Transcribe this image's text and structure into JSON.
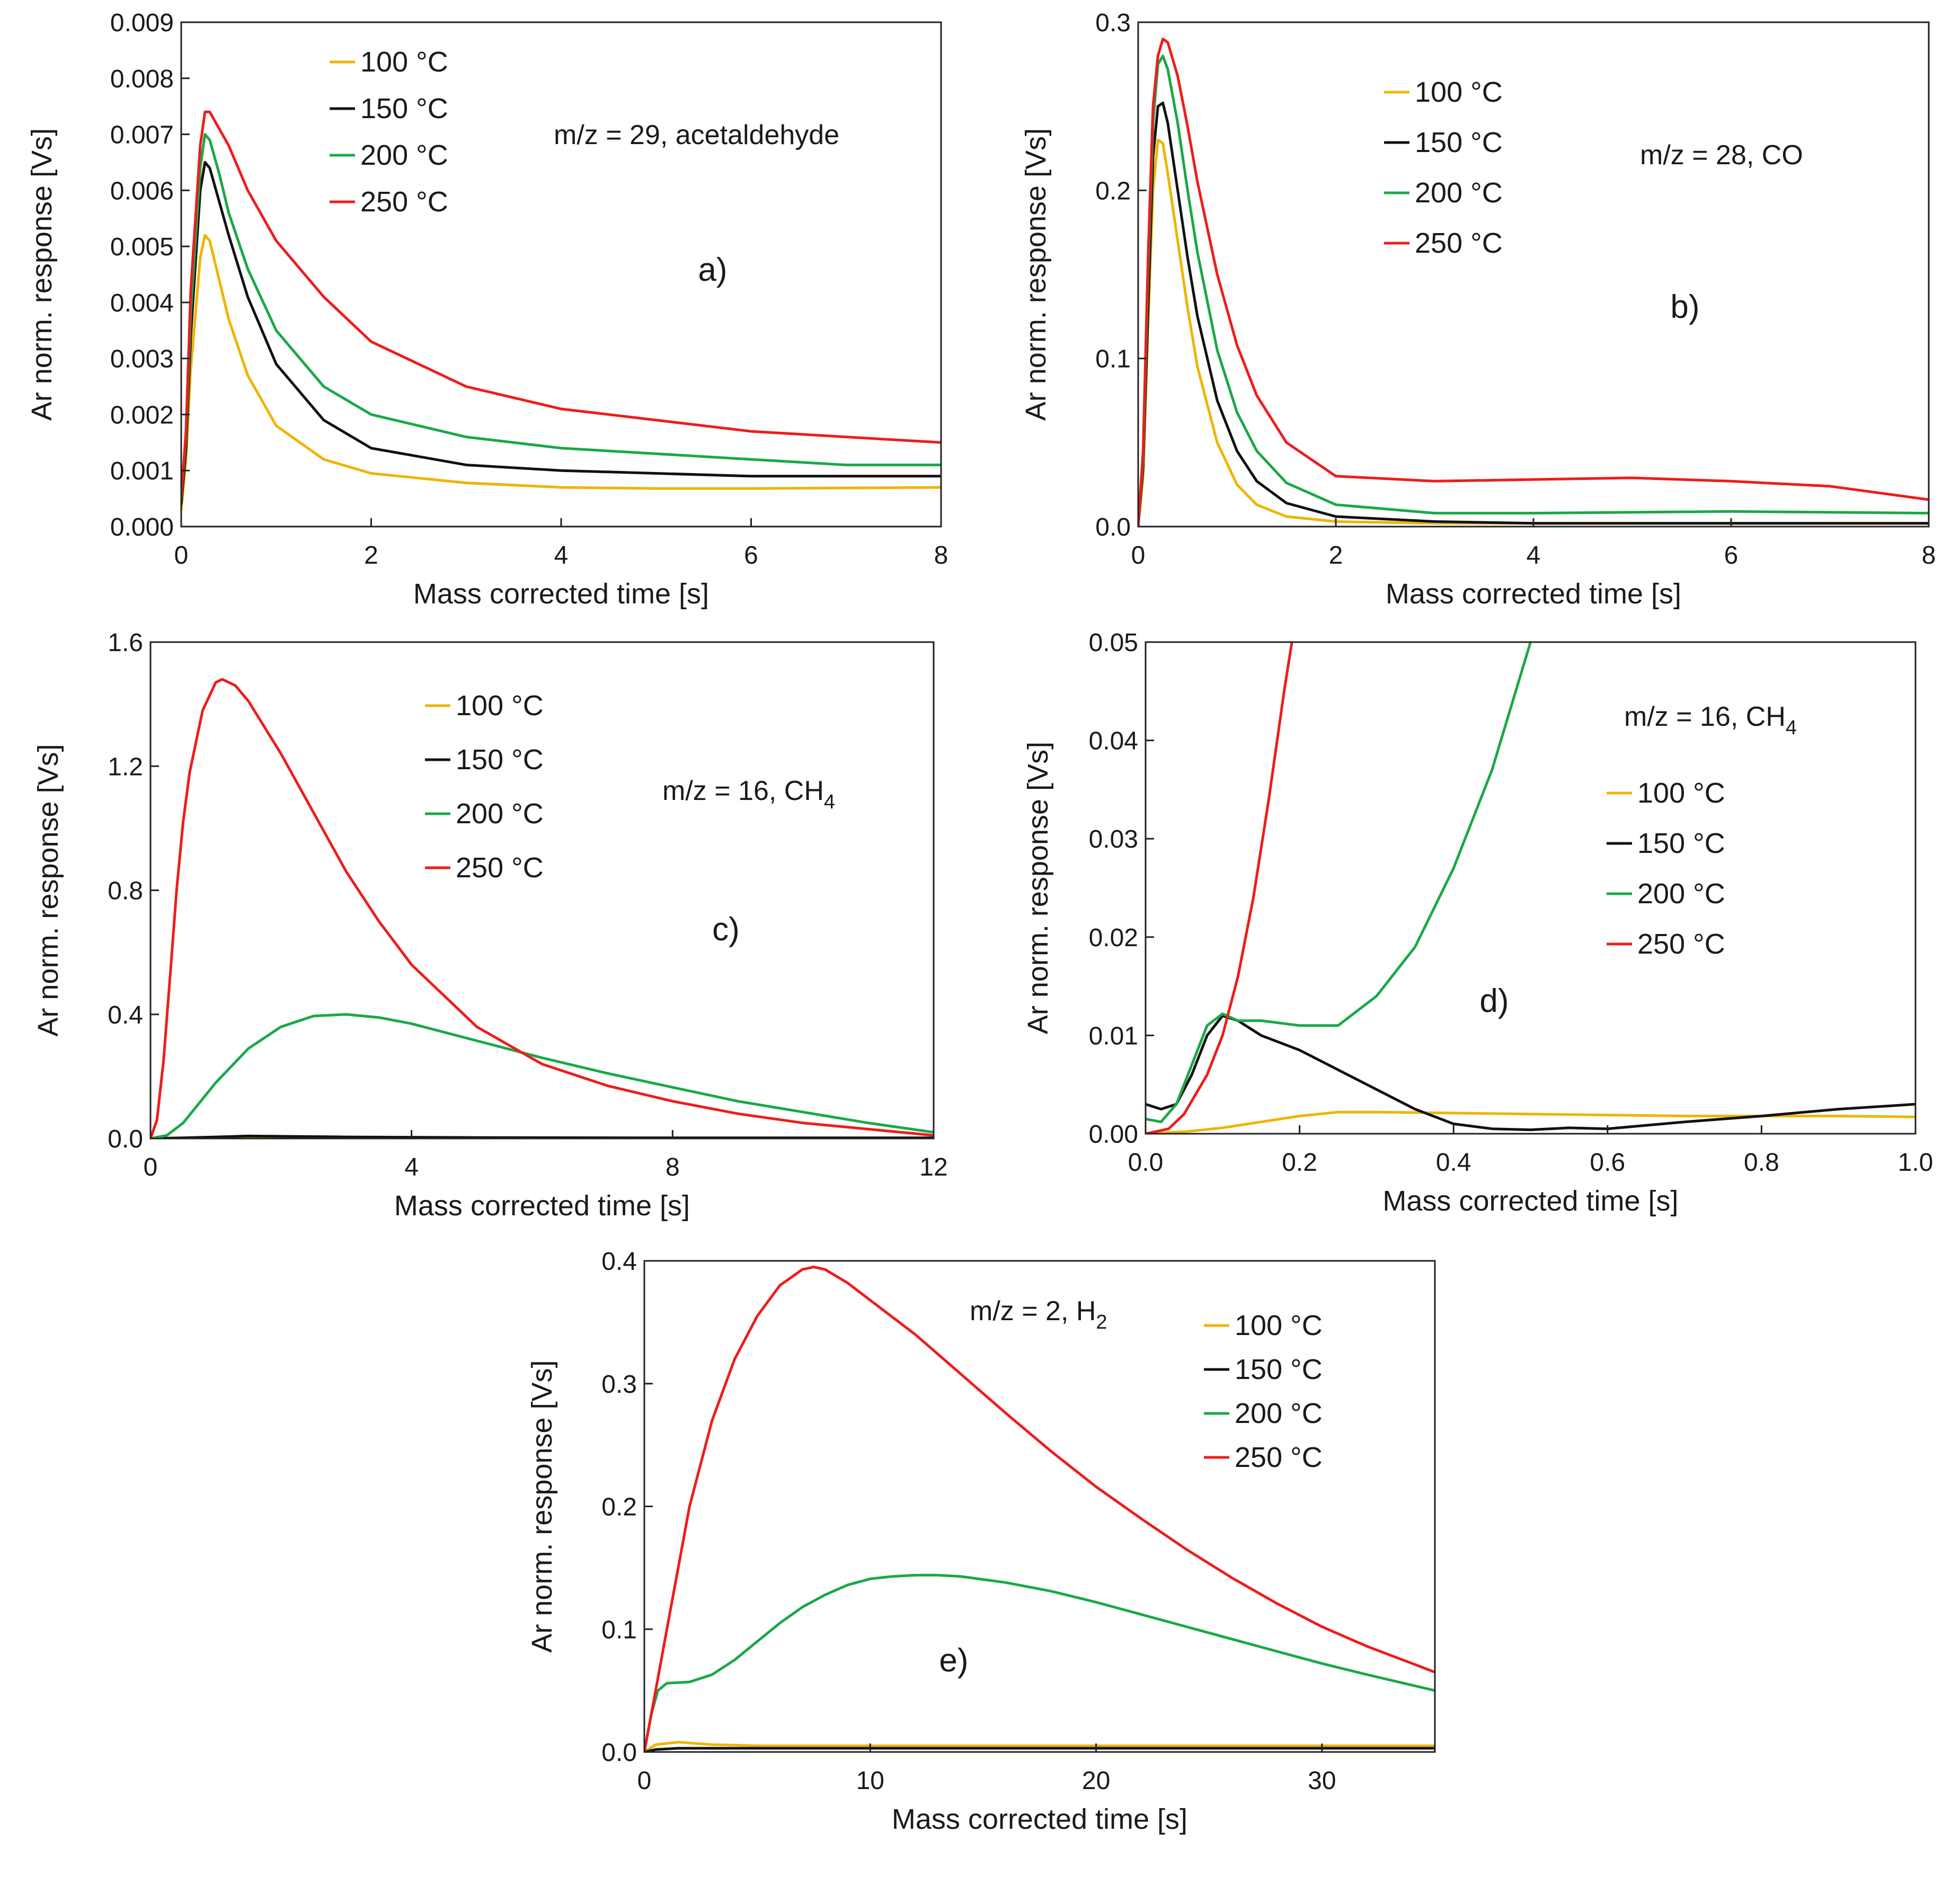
{
  "colors": {
    "100": "#f0b400",
    "150": "#111111",
    "200": "#1aa848",
    "250": "#ee1c1c"
  },
  "chart_data": [
    {
      "id": "a",
      "type": "line",
      "panel_label": "a)",
      "annotation": "m/z = 29, acetaldehyde",
      "xlabel": "Mass corrected time [s]",
      "ylabel": "Ar norm. response [Vs]",
      "xlim": [
        0,
        8
      ],
      "ylim": [
        0,
        0.009
      ],
      "xticks": [
        "0",
        "2",
        "4",
        "6",
        "8"
      ],
      "yticks": [
        "0.000",
        "0.001",
        "0.002",
        "0.003",
        "0.004",
        "0.005",
        "0.006",
        "0.007",
        "0.008",
        "0.009"
      ],
      "legend_position": "top-left",
      "series": [
        {
          "name": "100 °C",
          "color_key": "100",
          "x": [
            0,
            0.05,
            0.1,
            0.2,
            0.25,
            0.3,
            0.4,
            0.5,
            0.7,
            1.0,
            1.5,
            2.0,
            3.0,
            4.0,
            5.0,
            6.0,
            7.0,
            8.0
          ],
          "y": [
            0.0003,
            0.0012,
            0.0028,
            0.0048,
            0.0052,
            0.0051,
            0.0044,
            0.0037,
            0.0027,
            0.0018,
            0.0012,
            0.00095,
            0.00078,
            0.0007,
            0.00068,
            0.00068,
            0.00069,
            0.0007
          ]
        },
        {
          "name": "150 °C",
          "color_key": "150",
          "x": [
            0,
            0.05,
            0.1,
            0.2,
            0.25,
            0.3,
            0.4,
            0.5,
            0.7,
            1.0,
            1.5,
            2.0,
            3.0,
            4.0,
            5.0,
            6.0,
            7.0,
            8.0
          ],
          "y": [
            0.0004,
            0.0014,
            0.0034,
            0.006,
            0.0065,
            0.0064,
            0.0058,
            0.0052,
            0.0041,
            0.0029,
            0.0019,
            0.0014,
            0.0011,
            0.001,
            0.00095,
            0.0009,
            0.0009,
            0.0009
          ]
        },
        {
          "name": "200 °C",
          "color_key": "200",
          "x": [
            0,
            0.05,
            0.1,
            0.2,
            0.25,
            0.3,
            0.4,
            0.5,
            0.7,
            1.0,
            1.5,
            2.0,
            3.0,
            4.0,
            5.0,
            6.0,
            7.0,
            8.0
          ],
          "y": [
            0.0005,
            0.0016,
            0.0038,
            0.0064,
            0.007,
            0.0069,
            0.0063,
            0.0056,
            0.0046,
            0.0035,
            0.0025,
            0.002,
            0.0016,
            0.0014,
            0.0013,
            0.0012,
            0.0011,
            0.0011
          ]
        },
        {
          "name": "250 °C",
          "color_key": "250",
          "x": [
            0,
            0.05,
            0.1,
            0.2,
            0.25,
            0.3,
            0.4,
            0.5,
            0.7,
            1.0,
            1.5,
            2.0,
            3.0,
            4.0,
            5.0,
            6.0,
            7.0,
            8.0
          ],
          "y": [
            0.0005,
            0.0017,
            0.0042,
            0.0068,
            0.0074,
            0.0074,
            0.0071,
            0.0068,
            0.006,
            0.0051,
            0.0041,
            0.0033,
            0.0025,
            0.0021,
            0.0019,
            0.0017,
            0.0016,
            0.0015
          ]
        }
      ]
    },
    {
      "id": "b",
      "type": "line",
      "panel_label": "b)",
      "annotation": "m/z = 28, CO",
      "xlabel": "Mass corrected time [s]",
      "ylabel": "Ar norm. response [Vs]",
      "xlim": [
        0,
        8
      ],
      "ylim": [
        0,
        0.3
      ],
      "xticks": [
        "0",
        "2",
        "4",
        "6",
        "8"
      ],
      "yticks": [
        "0.0",
        "0.1",
        "0.2",
        "0.3"
      ],
      "legend_position": "top-left",
      "series": [
        {
          "name": "100 °C",
          "color_key": "100",
          "x": [
            0,
            0.05,
            0.1,
            0.15,
            0.2,
            0.25,
            0.3,
            0.4,
            0.5,
            0.6,
            0.8,
            1.0,
            1.2,
            1.5,
            2.0,
            3.0,
            4.0,
            6.0,
            8.0
          ],
          "y": [
            0,
            0.03,
            0.12,
            0.2,
            0.23,
            0.228,
            0.21,
            0.17,
            0.13,
            0.095,
            0.05,
            0.025,
            0.013,
            0.006,
            0.003,
            0.002,
            0.002,
            0.002,
            0.002
          ]
        },
        {
          "name": "150 °C",
          "color_key": "150",
          "x": [
            0,
            0.05,
            0.1,
            0.15,
            0.2,
            0.25,
            0.3,
            0.4,
            0.5,
            0.6,
            0.8,
            1.0,
            1.2,
            1.5,
            2.0,
            3.0,
            4.0,
            6.0,
            8.0
          ],
          "y": [
            0,
            0.035,
            0.13,
            0.22,
            0.25,
            0.252,
            0.24,
            0.2,
            0.16,
            0.125,
            0.075,
            0.045,
            0.027,
            0.014,
            0.006,
            0.003,
            0.002,
            0.002,
            0.002
          ]
        },
        {
          "name": "200 °C",
          "color_key": "200",
          "x": [
            0,
            0.05,
            0.1,
            0.15,
            0.2,
            0.25,
            0.3,
            0.4,
            0.5,
            0.6,
            0.8,
            1.0,
            1.2,
            1.5,
            2.0,
            3.0,
            4.0,
            6.0,
            8.0
          ],
          "y": [
            0,
            0.04,
            0.15,
            0.24,
            0.275,
            0.28,
            0.272,
            0.24,
            0.2,
            0.163,
            0.105,
            0.068,
            0.045,
            0.026,
            0.013,
            0.008,
            0.008,
            0.009,
            0.008
          ]
        },
        {
          "name": "250 °C",
          "color_key": "250",
          "x": [
            0,
            0.05,
            0.1,
            0.15,
            0.2,
            0.25,
            0.3,
            0.4,
            0.5,
            0.6,
            0.8,
            1.0,
            1.2,
            1.5,
            2.0,
            3.0,
            4.0,
            5.0,
            6.0,
            7.0,
            8.0
          ],
          "y": [
            0,
            0.045,
            0.16,
            0.25,
            0.28,
            0.29,
            0.288,
            0.268,
            0.238,
            0.205,
            0.15,
            0.108,
            0.078,
            0.05,
            0.03,
            0.027,
            0.028,
            0.029,
            0.027,
            0.024,
            0.016
          ]
        }
      ]
    },
    {
      "id": "c",
      "type": "line",
      "panel_label": "c)",
      "annotation_main": "m/z = 16, CH",
      "annotation_sub": "4",
      "xlabel": "Mass corrected time [s]",
      "ylabel": "Ar norm. response [Vs]",
      "xlim": [
        0,
        12
      ],
      "ylim": [
        0,
        1.6
      ],
      "xticks": [
        "0",
        "4",
        "8",
        "12"
      ],
      "yticks": [
        "0.0",
        "0.4",
        "0.8",
        "1.2",
        "1.6"
      ],
      "legend_position": "top-right",
      "series": [
        {
          "name": "100 °C",
          "color_key": "100",
          "x": [
            0,
            12
          ],
          "y": [
            0.001,
            0.001
          ]
        },
        {
          "name": "150 °C",
          "color_key": "150",
          "x": [
            0,
            0.5,
            1.0,
            1.5,
            2.0,
            3.0,
            5.0,
            8.0,
            12.0
          ],
          "y": [
            0,
            0.002,
            0.005,
            0.008,
            0.007,
            0.005,
            0.003,
            0.002,
            0.002
          ]
        },
        {
          "name": "200 °C",
          "color_key": "200",
          "x": [
            0,
            0.25,
            0.5,
            1.0,
            1.5,
            2.0,
            2.5,
            3.0,
            3.5,
            4.0,
            5.0,
            6.0,
            7.0,
            8.0,
            9.0,
            10.0,
            11.0,
            12.0
          ],
          "y": [
            0,
            0.01,
            0.05,
            0.18,
            0.29,
            0.36,
            0.395,
            0.4,
            0.39,
            0.37,
            0.315,
            0.26,
            0.21,
            0.165,
            0.12,
            0.085,
            0.05,
            0.02
          ]
        },
        {
          "name": "250 °C",
          "color_key": "250",
          "x": [
            0,
            0.1,
            0.2,
            0.3,
            0.4,
            0.5,
            0.6,
            0.8,
            1.0,
            1.1,
            1.3,
            1.5,
            2.0,
            2.5,
            3.0,
            3.5,
            4.0,
            5.0,
            6.0,
            7.0,
            8.0,
            9.0,
            10.0,
            11.0,
            12.0
          ],
          "y": [
            0,
            0.06,
            0.25,
            0.52,
            0.8,
            1.02,
            1.18,
            1.38,
            1.47,
            1.48,
            1.46,
            1.41,
            1.24,
            1.05,
            0.86,
            0.7,
            0.56,
            0.36,
            0.24,
            0.17,
            0.12,
            0.08,
            0.05,
            0.03,
            0.01
          ]
        }
      ]
    },
    {
      "id": "d",
      "type": "line",
      "panel_label": "d)",
      "annotation_main": "m/z = 16, CH",
      "annotation_sub": "4",
      "xlabel": "Mass corrected time [s]",
      "ylabel": "Ar norm. response [Vs]",
      "xlim": [
        0,
        1
      ],
      "ylim": [
        0,
        0.05
      ],
      "xticks": [
        "0.0",
        "0.2",
        "0.4",
        "0.6",
        "0.8",
        "1.0"
      ],
      "yticks": [
        "0.00",
        "0.01",
        "0.02",
        "0.03",
        "0.04",
        "0.05"
      ],
      "legend_position": "right",
      "series": [
        {
          "name": "100 °C",
          "color_key": "100",
          "x": [
            0,
            0.05,
            0.1,
            0.15,
            0.2,
            0.25,
            0.3,
            0.4,
            0.5,
            0.6,
            0.7,
            0.8,
            0.9,
            1.0
          ],
          "y": [
            0,
            0.0002,
            0.0006,
            0.0012,
            0.0018,
            0.0022,
            0.0022,
            0.0021,
            0.002,
            0.0019,
            0.0018,
            0.0018,
            0.0018,
            0.0017
          ]
        },
        {
          "name": "150 °C",
          "color_key": "150",
          "x": [
            0,
            0.02,
            0.04,
            0.06,
            0.08,
            0.1,
            0.12,
            0.15,
            0.2,
            0.25,
            0.3,
            0.35,
            0.4,
            0.45,
            0.5,
            0.55,
            0.6,
            0.7,
            0.8,
            0.9,
            1.0
          ],
          "y": [
            0.003,
            0.0025,
            0.003,
            0.006,
            0.01,
            0.012,
            0.0115,
            0.01,
            0.0085,
            0.0065,
            0.0045,
            0.0025,
            0.001,
            0.0005,
            0.0004,
            0.0006,
            0.0005,
            0.0012,
            0.0018,
            0.0025,
            0.003
          ]
        },
        {
          "name": "200 °C",
          "color_key": "200",
          "x": [
            0,
            0.02,
            0.04,
            0.06,
            0.08,
            0.1,
            0.12,
            0.15,
            0.2,
            0.25,
            0.3,
            0.35,
            0.4,
            0.45,
            0.5
          ],
          "y": [
            0.0015,
            0.0012,
            0.003,
            0.007,
            0.011,
            0.0122,
            0.0115,
            0.0115,
            0.011,
            0.011,
            0.014,
            0.019,
            0.027,
            0.037,
            0.05
          ]
        },
        {
          "name": "250 °C",
          "color_key": "250",
          "x": [
            0,
            0.03,
            0.05,
            0.08,
            0.1,
            0.12,
            0.14,
            0.16,
            0.18,
            0.19
          ],
          "y": [
            0,
            0.0005,
            0.002,
            0.006,
            0.01,
            0.016,
            0.024,
            0.034,
            0.045,
            0.05
          ]
        }
      ]
    },
    {
      "id": "e",
      "type": "line",
      "panel_label": "e)",
      "annotation_main": "m/z = 2, H",
      "annotation_sub": "2",
      "xlabel": "Mass corrected time [s]",
      "ylabel": "Ar norm. response [Vs]",
      "xlim": [
        0,
        35
      ],
      "ylim": [
        0,
        0.4
      ],
      "xticks": [
        "0",
        "10",
        "20",
        "30"
      ],
      "yticks": [
        "0.0",
        "0.1",
        "0.2",
        "0.3",
        "0.4"
      ],
      "legend_position": "top-right",
      "series": [
        {
          "name": "100 °C",
          "color_key": "100",
          "x": [
            0,
            0.5,
            1.5,
            3.0,
            5.0,
            10.0,
            20.0,
            35.0
          ],
          "y": [
            0,
            0.006,
            0.008,
            0.006,
            0.005,
            0.005,
            0.005,
            0.005
          ]
        },
        {
          "name": "150 °C",
          "color_key": "150",
          "x": [
            0,
            0.5,
            1.5,
            3.0,
            5.0,
            10.0,
            20.0,
            35.0
          ],
          "y": [
            0,
            0.002,
            0.003,
            0.003,
            0.003,
            0.003,
            0.003,
            0.003
          ]
        },
        {
          "name": "200 °C",
          "color_key": "200",
          "x": [
            0,
            0.3,
            0.6,
            1.0,
            2.0,
            3.0,
            4.0,
            5.0,
            6.0,
            7.0,
            8.0,
            9.0,
            10.0,
            11.0,
            12.0,
            13.0,
            14.0,
            16.0,
            18.0,
            20.0,
            22.0,
            24.0,
            26.0,
            28.0,
            30.0,
            32.0,
            35.0
          ],
          "y": [
            0,
            0.03,
            0.05,
            0.056,
            0.057,
            0.063,
            0.075,
            0.09,
            0.105,
            0.118,
            0.128,
            0.136,
            0.141,
            0.143,
            0.144,
            0.144,
            0.143,
            0.138,
            0.131,
            0.122,
            0.112,
            0.102,
            0.092,
            0.082,
            0.072,
            0.063,
            0.05
          ]
        },
        {
          "name": "250 °C",
          "color_key": "250",
          "x": [
            0,
            0.3,
            0.6,
            1.0,
            2.0,
            3.0,
            4.0,
            5.0,
            6.0,
            7.0,
            7.5,
            8.0,
            9.0,
            10.0,
            12.0,
            14.0,
            16.0,
            18.0,
            20.0,
            22.0,
            24.0,
            26.0,
            28.0,
            30.0,
            32.0,
            34.0,
            35.0
          ],
          "y": [
            0,
            0.03,
            0.06,
            0.1,
            0.2,
            0.27,
            0.32,
            0.355,
            0.38,
            0.393,
            0.395,
            0.393,
            0.382,
            0.368,
            0.34,
            0.308,
            0.276,
            0.245,
            0.216,
            0.19,
            0.165,
            0.142,
            0.121,
            0.102,
            0.086,
            0.072,
            0.065
          ]
        }
      ]
    }
  ]
}
